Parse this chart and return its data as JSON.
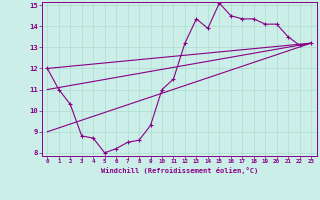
{
  "xlabel": "Windchill (Refroidissement éolien,°C)",
  "bg_color": "#cceee8",
  "line_color": "#880088",
  "grid_color": "#aaddcc",
  "xmin": 0,
  "xmax": 23,
  "ymin": 8,
  "ymax": 15,
  "scatter_x": [
    0,
    1,
    2,
    3,
    4,
    5,
    6,
    7,
    8,
    9,
    10,
    11,
    12,
    13,
    14,
    15,
    16,
    17,
    18,
    19,
    20,
    21,
    22,
    23
  ],
  "scatter_y": [
    12.0,
    11.0,
    10.3,
    8.8,
    8.7,
    8.0,
    8.2,
    8.5,
    8.6,
    9.3,
    11.0,
    11.5,
    13.2,
    14.35,
    13.9,
    15.1,
    14.5,
    14.35,
    14.35,
    14.1,
    14.1,
    13.5,
    13.1,
    13.2
  ],
  "line1_x": [
    0,
    23
  ],
  "line1_y": [
    12.0,
    13.2
  ],
  "line2_x": [
    0,
    23
  ],
  "line2_y": [
    11.0,
    13.2
  ],
  "line3_x": [
    0,
    23
  ],
  "line3_y": [
    9.0,
    13.2
  ],
  "ytick_labels": [
    "8",
    "9",
    "10",
    "11",
    "12",
    "13",
    "14",
    "15"
  ],
  "xtick_labels": [
    "0",
    "1",
    "2",
    "3",
    "4",
    "5",
    "6",
    "7",
    "8",
    "9",
    "10",
    "11",
    "12",
    "13",
    "14",
    "15",
    "16",
    "17",
    "18",
    "19",
    "20",
    "21",
    "22",
    "23"
  ]
}
